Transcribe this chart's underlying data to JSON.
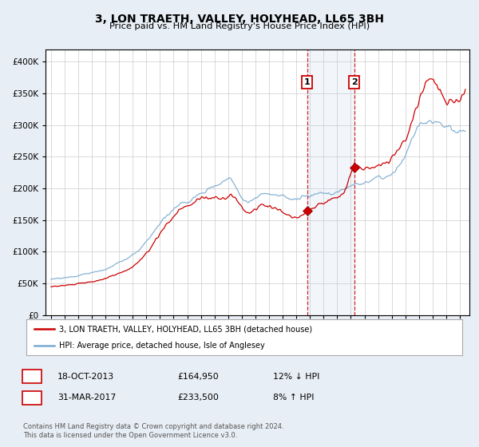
{
  "title": "3, LON TRAETH, VALLEY, HOLYHEAD, LL65 3BH",
  "subtitle": "Price paid vs. HM Land Registry's House Price Index (HPI)",
  "legend_line1": "3, LON TRAETH, VALLEY, HOLYHEAD, LL65 3BH (detached house)",
  "legend_line2": "HPI: Average price, detached house, Isle of Anglesey",
  "sale1_date": "18-OCT-2013",
  "sale1_price": "£164,950",
  "sale1_hpi": "12% ↓ HPI",
  "sale2_date": "31-MAR-2017",
  "sale2_price": "£233,500",
  "sale2_hpi": "8% ↑ HPI",
  "footer": "Contains HM Land Registry data © Crown copyright and database right 2024.\nThis data is licensed under the Open Government Licence v3.0.",
  "hpi_color": "#7aaad0",
  "property_color": "#cc0000",
  "background_color": "#e8eef5",
  "plot_bg": "#ffffff",
  "grid_color": "#cccccc",
  "sale1_year": 2013.79,
  "sale2_year": 2017.25,
  "sale1_value": 164950,
  "sale2_value": 233500,
  "ylim_max": 420000,
  "ylim_min": 0,
  "yticks": [
    0,
    50000,
    100000,
    150000,
    200000,
    250000,
    300000,
    350000,
    400000
  ],
  "xlim_min": 1994.6,
  "xlim_max": 2025.7
}
